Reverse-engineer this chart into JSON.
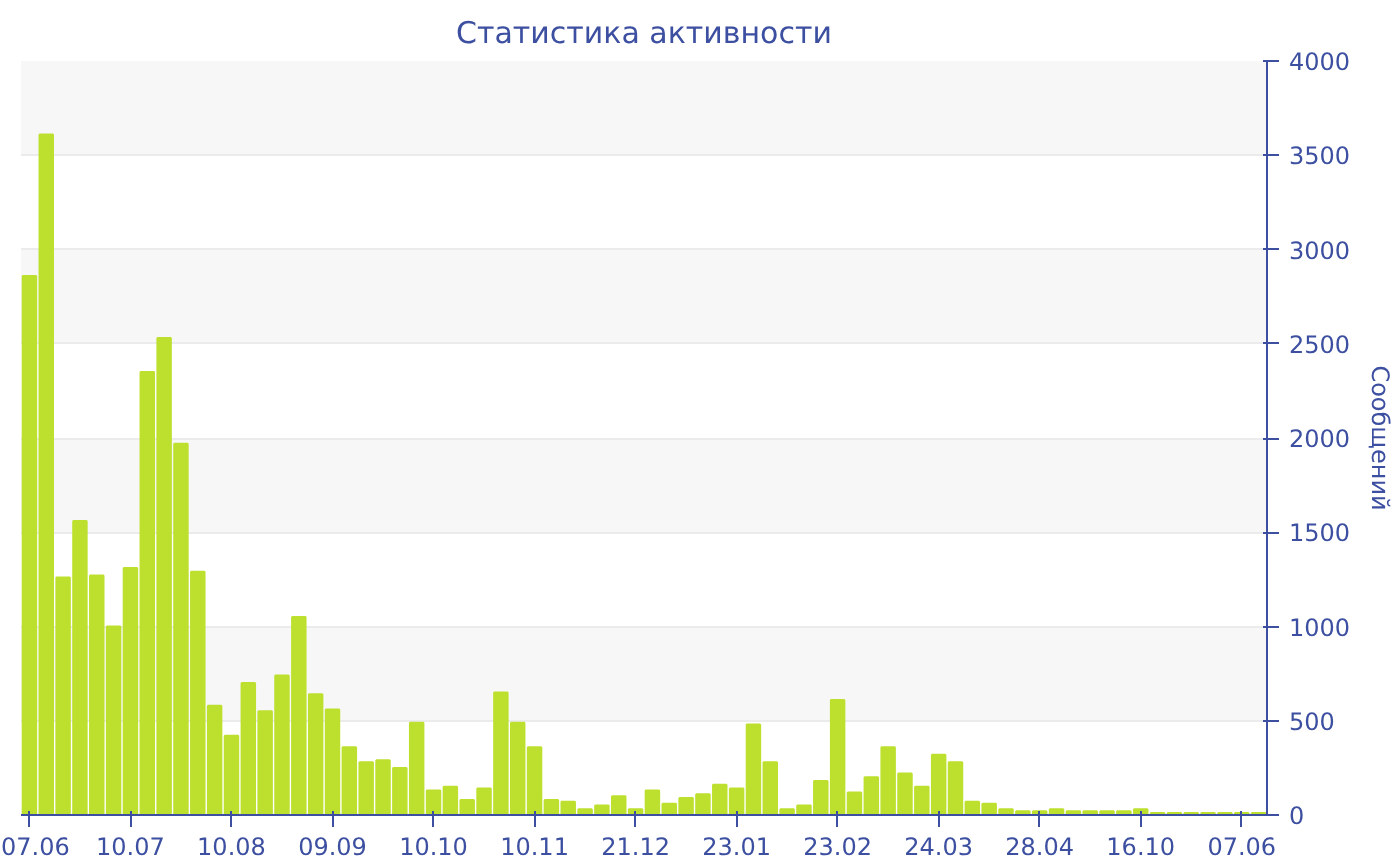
{
  "chart_data": {
    "type": "bar",
    "title": "Статистика активности",
    "ylabel": "Сообщений",
    "categories": [
      "07.06",
      null,
      null,
      null,
      null,
      null,
      "10.07",
      null,
      null,
      null,
      null,
      null,
      "10.08",
      null,
      null,
      null,
      null,
      null,
      "09.09",
      null,
      null,
      null,
      null,
      null,
      "10.10",
      null,
      null,
      null,
      null,
      null,
      "10.11",
      null,
      null,
      null,
      null,
      null,
      "21.12",
      null,
      null,
      null,
      null,
      null,
      "23.01",
      null,
      null,
      null,
      null,
      null,
      "23.02",
      null,
      null,
      null,
      null,
      null,
      "24.03",
      null,
      null,
      null,
      null,
      null,
      "28.04",
      null,
      null,
      null,
      null,
      null,
      "16.10",
      null,
      null,
      null,
      null,
      null,
      "07.06",
      null
    ],
    "values": [
      2860,
      3610,
      1260,
      1560,
      1270,
      1000,
      1310,
      2350,
      2530,
      1970,
      1290,
      580,
      420,
      700,
      550,
      740,
      1050,
      640,
      560,
      360,
      280,
      290,
      250,
      490,
      130,
      150,
      80,
      140,
      650,
      490,
      360,
      80,
      70,
      30,
      50,
      100,
      30,
      130,
      60,
      90,
      110,
      160,
      140,
      480,
      280,
      30,
      50,
      180,
      610,
      120,
      200,
      360,
      220,
      150,
      320,
      280,
      70,
      60,
      30,
      20,
      20,
      30,
      20,
      20,
      20,
      20,
      30,
      10,
      10,
      10,
      10,
      10,
      10,
      10
    ],
    "color": "#bde02f",
    "ylim": [
      0,
      4000
    ],
    "yticks": [
      0,
      500,
      1000,
      1500,
      2000,
      2500,
      3000,
      3500,
      4000
    ],
    "grid": "y"
  }
}
